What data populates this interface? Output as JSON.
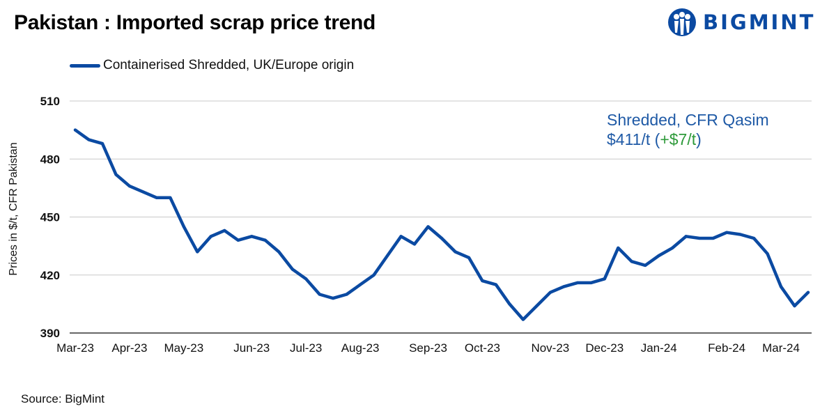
{
  "header": {
    "title": "Pakistan : Imported scrap price trend"
  },
  "logo": {
    "text": "BIGMINT",
    "color": "#0b4aa2"
  },
  "annotation": {
    "line1": "Shredded, CFR Qasim",
    "price": "$411/t",
    "open_paren": " (",
    "change": "+$7/t",
    "close_paren": ")"
  },
  "source": "Source: BigMint",
  "chart_data": {
    "type": "line",
    "title": "Pakistan : Imported scrap price trend",
    "xlabel": "",
    "ylabel": "Prices in $/t, CFR Pakistan",
    "ylim": [
      390,
      510
    ],
    "yticks": [
      390,
      420,
      450,
      480,
      510
    ],
    "grid": true,
    "legend_position": "top-left",
    "x_ticks": [
      {
        "label": "Mar-23",
        "index": 0
      },
      {
        "label": "Apr-23",
        "index": 4
      },
      {
        "label": "May-23",
        "index": 8
      },
      {
        "label": "Jun-23",
        "index": 13
      },
      {
        "label": "Jul-23",
        "index": 17
      },
      {
        "label": "Aug-23",
        "index": 21
      },
      {
        "label": "Sep-23",
        "index": 26
      },
      {
        "label": "Oct-23",
        "index": 30
      },
      {
        "label": "Nov-23",
        "index": 35
      },
      {
        "label": "Dec-23",
        "index": 39
      },
      {
        "label": "Jan-24",
        "index": 43
      },
      {
        "label": "Feb-24",
        "index": 48
      },
      {
        "label": "Mar-24",
        "index": 52
      }
    ],
    "series": [
      {
        "name": "Containerised Shredded, UK/Europe origin",
        "color": "#0b4aa2",
        "values": [
          495,
          490,
          488,
          472,
          466,
          463,
          460,
          460,
          445,
          432,
          440,
          443,
          438,
          440,
          438,
          432,
          423,
          418,
          410,
          408,
          410,
          415,
          420,
          430,
          440,
          436,
          445,
          439,
          432,
          429,
          417,
          415,
          405,
          397,
          404,
          411,
          414,
          416,
          416,
          418,
          434,
          427,
          425,
          430,
          434,
          440,
          439,
          439,
          442,
          441,
          439,
          431,
          414,
          404,
          411
        ]
      }
    ]
  }
}
